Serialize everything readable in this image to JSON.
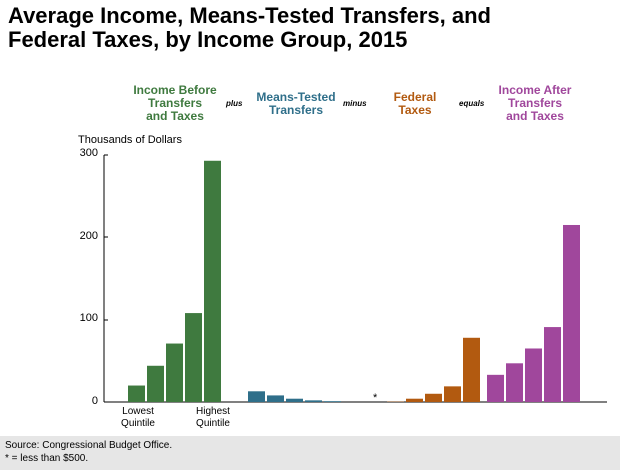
{
  "title": {
    "line1": "Average Income, Means-Tested Transfers, and",
    "line2": "Federal Taxes, by Income Group, 2015"
  },
  "chart_data": {
    "type": "bar",
    "title": "Average Income, Means-Tested Transfers, and Federal Taxes, by Income Group, 2015",
    "ylabel": "Thousands of Dollars",
    "ylim": [
      0,
      300
    ],
    "yticks": [
      0,
      100,
      200,
      300
    ],
    "quintile_labels": {
      "lowest": [
        "Lowest",
        "Quintile"
      ],
      "highest": [
        "Highest",
        "Quintile"
      ]
    },
    "operators": [
      "plus",
      "minus",
      "equals"
    ],
    "note_marker": "*",
    "groups": [
      {
        "label": [
          "Income Before",
          "Transfers",
          "and Taxes"
        ],
        "color": "#3f7a3f",
        "values": [
          20,
          44,
          71,
          108,
          293
        ]
      },
      {
        "label": [
          "Means-Tested",
          "Transfers"
        ],
        "color": "#2f6f8a",
        "values": [
          13,
          8,
          4,
          2,
          1
        ]
      },
      {
        "label": [
          "Federal",
          "Taxes"
        ],
        "color": "#b25a10",
        "values": [
          0.4,
          4,
          10,
          19,
          78
        ]
      },
      {
        "label": [
          "Income After",
          "Transfers",
          "and Taxes"
        ],
        "color": "#a0479c",
        "values": [
          33,
          47,
          65,
          91,
          215
        ]
      }
    ]
  },
  "footer": {
    "source": "Source: Congressional Budget Office.",
    "note": "* = less than $500."
  }
}
